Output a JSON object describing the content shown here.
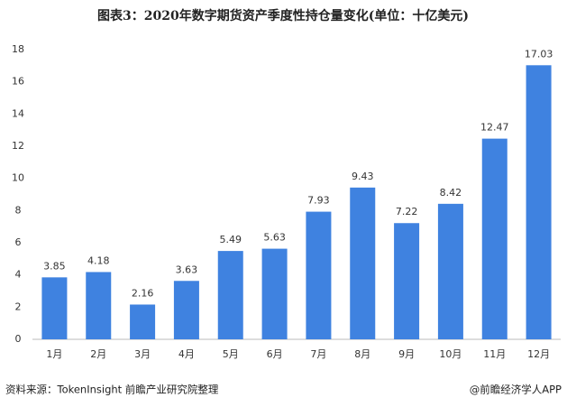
{
  "chart_data": {
    "type": "bar",
    "title": "图表3：2020年数字期货资产季度性持仓量变化(单位：十亿美元)",
    "categories": [
      "1月",
      "2月",
      "3月",
      "4月",
      "5月",
      "6月",
      "7月",
      "8月",
      "9月",
      "10月",
      "11月",
      "12月"
    ],
    "values": [
      3.85,
      4.18,
      2.16,
      3.63,
      5.49,
      5.63,
      7.93,
      9.43,
      7.22,
      8.42,
      12.47,
      17.03
    ],
    "color": "#3f82e0",
    "ylim": [
      0,
      18
    ],
    "yticks": [
      0,
      2,
      4,
      6,
      8,
      10,
      12,
      14,
      16,
      18
    ],
    "grid": false,
    "source": "资料来源：TokenInsight 前瞻产业研究院整理",
    "brand": "@前瞻经济学人APP"
  }
}
